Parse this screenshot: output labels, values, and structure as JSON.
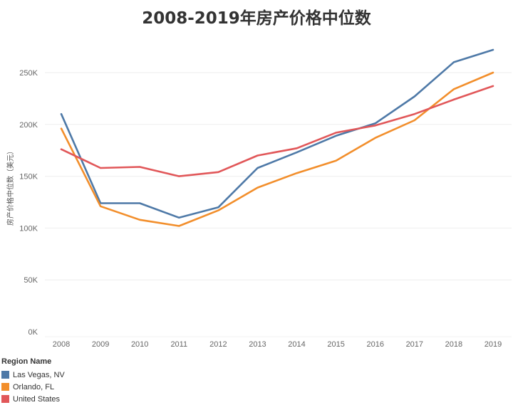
{
  "chart_data": {
    "type": "line",
    "title": "2008-2019年房产价格中位数",
    "ylabel": "房产价格中位数（美元）",
    "xlabel": "",
    "categories": [
      "2008",
      "2009",
      "2010",
      "2011",
      "2012",
      "2013",
      "2014",
      "2015",
      "2016",
      "2017",
      "2018",
      "2019"
    ],
    "ylim": [
      0,
      280000
    ],
    "yticks": [
      0,
      50000,
      100000,
      150000,
      200000,
      250000
    ],
    "ytick_labels": [
      "0K",
      "50K",
      "100K",
      "150K",
      "200K",
      "250K"
    ],
    "grid": true,
    "legend_position": "bottom-left",
    "legend_title": "Region Name",
    "series": [
      {
        "name": "Las Vegas, NV",
        "color": "#4e79a7",
        "values": [
          210000,
          124000,
          124000,
          110000,
          120000,
          158000,
          173000,
          189000,
          201000,
          227000,
          260000,
          272000
        ]
      },
      {
        "name": "Orlando, FL",
        "color": "#f28e2b",
        "values": [
          196000,
          121000,
          108000,
          102000,
          117000,
          139000,
          153000,
          165000,
          187000,
          204000,
          234000,
          250000
        ]
      },
      {
        "name": "United States",
        "color": "#e15759",
        "values": [
          176000,
          158000,
          159000,
          150000,
          154000,
          170000,
          177000,
          192000,
          199000,
          210000,
          224000,
          237000
        ]
      }
    ]
  }
}
